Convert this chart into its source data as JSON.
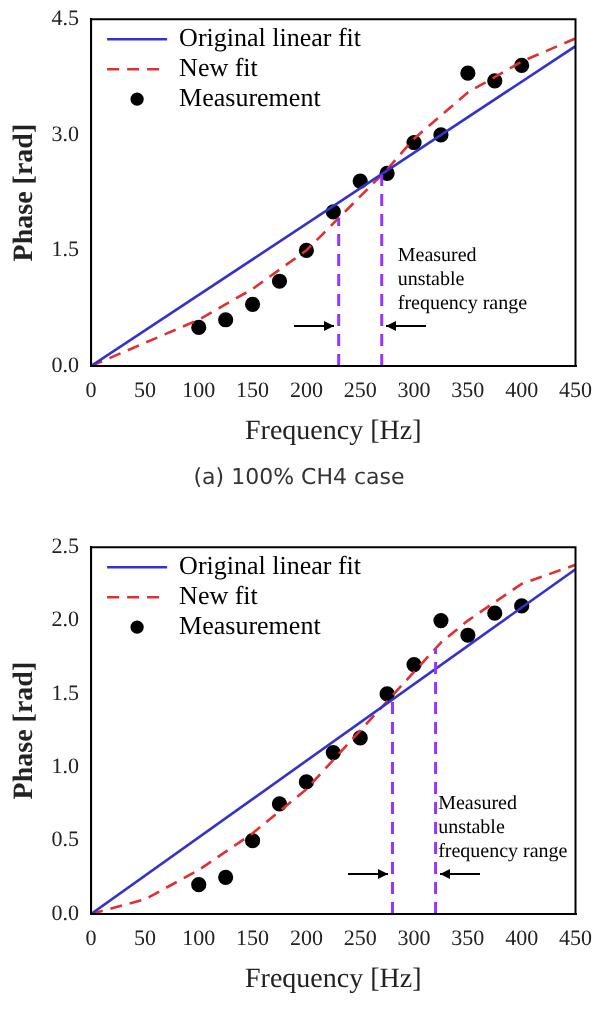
{
  "chart_data": [
    {
      "type": "line",
      "xlabel": "Frequency [Hz]",
      "ylabel": "Phase [rad]",
      "xlim": [
        0,
        450
      ],
      "xticks": [
        0,
        50,
        100,
        150,
        200,
        250,
        300,
        350,
        400,
        450
      ],
      "ylim": [
        0,
        4.5
      ],
      "yticks": [
        {
          "value": 0,
          "label": "0.0"
        },
        {
          "value": 1.5,
          "label": "1.5"
        },
        {
          "value": 3,
          "label": "3.0"
        },
        {
          "value": 4.5,
          "label": "4.5"
        }
      ],
      "grid": false,
      "legend": "top left",
      "series": [
        {
          "name": "Original linear fit",
          "type": "line",
          "color": "#3333cc",
          "line_style": "solid",
          "marker": "none",
          "x": [
            0,
            450
          ],
          "values": [
            0,
            4.15
          ]
        },
        {
          "name": "New fit",
          "type": "line",
          "color": "#e03030",
          "line_style": "dashed",
          "marker": "none",
          "x": [
            0,
            50,
            100,
            150,
            200,
            250,
            275,
            300,
            350,
            400,
            450
          ],
          "values": [
            0,
            0.3,
            0.6,
            1.0,
            1.5,
            2.2,
            2.55,
            2.95,
            3.55,
            3.95,
            4.25
          ]
        },
        {
          "name": "Measurement",
          "type": "scatter",
          "color": "#000000",
          "marker": "circle",
          "x": [
            100,
            125,
            150,
            175,
            200,
            225,
            250,
            275,
            300,
            325,
            350,
            375,
            400
          ],
          "values": [
            0.5,
            0.6,
            0.8,
            1.1,
            1.5,
            2.0,
            2.4,
            2.5,
            2.9,
            3.0,
            3.8,
            3.7,
            3.9
          ]
        }
      ],
      "ref_lines": [
        {
          "axis": "x",
          "value": 230,
          "color": "#9933ff",
          "line_style": "dashed"
        },
        {
          "axis": "x",
          "value": 270,
          "color": "#9933ff",
          "line_style": "dashed"
        }
      ],
      "annotations": [
        "Measured unstable frequency range",
        "(a) 100% CH4 case"
      ]
    },
    {
      "type": "line",
      "xlabel": "Frequency [Hz]",
      "ylabel": "Phase [rad]",
      "xlim": [
        0,
        450
      ],
      "xticks": [
        0,
        50,
        100,
        150,
        200,
        250,
        300,
        350,
        400,
        450
      ],
      "ylim": [
        0,
        2.5
      ],
      "yticks": [
        {
          "value": 0,
          "label": "0.0"
        },
        {
          "value": 0.5,
          "label": "0.5"
        },
        {
          "value": 1,
          "label": "1.0"
        },
        {
          "value": 1.5,
          "label": "1.5"
        },
        {
          "value": 2,
          "label": "2.0"
        },
        {
          "value": 2.5,
          "label": "2.5"
        }
      ],
      "grid": false,
      "legend": "top left",
      "series": [
        {
          "name": "Original linear fit",
          "type": "line",
          "color": "#3333cc",
          "line_style": "solid",
          "marker": "none",
          "x": [
            0,
            450
          ],
          "values": [
            0,
            2.35
          ]
        },
        {
          "name": "New fit",
          "type": "line",
          "color": "#e03030",
          "line_style": "dashed",
          "marker": "none",
          "x": [
            0,
            50,
            100,
            150,
            200,
            250,
            275,
            300,
            325,
            350,
            400,
            450
          ],
          "values": [
            0,
            0.1,
            0.3,
            0.55,
            0.85,
            1.25,
            1.45,
            1.65,
            1.85,
            2.0,
            2.25,
            2.38
          ]
        },
        {
          "name": "Measurement",
          "type": "scatter",
          "color": "#000000",
          "marker": "circle",
          "x": [
            100,
            125,
            150,
            175,
            200,
            225,
            250,
            275,
            300,
            325,
            350,
            375,
            400
          ],
          "values": [
            0.2,
            0.25,
            0.5,
            0.75,
            0.9,
            1.1,
            1.2,
            1.5,
            1.7,
            2.0,
            1.9,
            2.05,
            2.1
          ]
        }
      ],
      "ref_lines": [
        {
          "axis": "x",
          "value": 280,
          "color": "#9933ff",
          "line_style": "dashed"
        },
        {
          "axis": "x",
          "value": 320,
          "color": "#9933ff",
          "line_style": "dashed"
        }
      ],
      "annotations": [
        "Measured unstable frequency range"
      ]
    }
  ]
}
